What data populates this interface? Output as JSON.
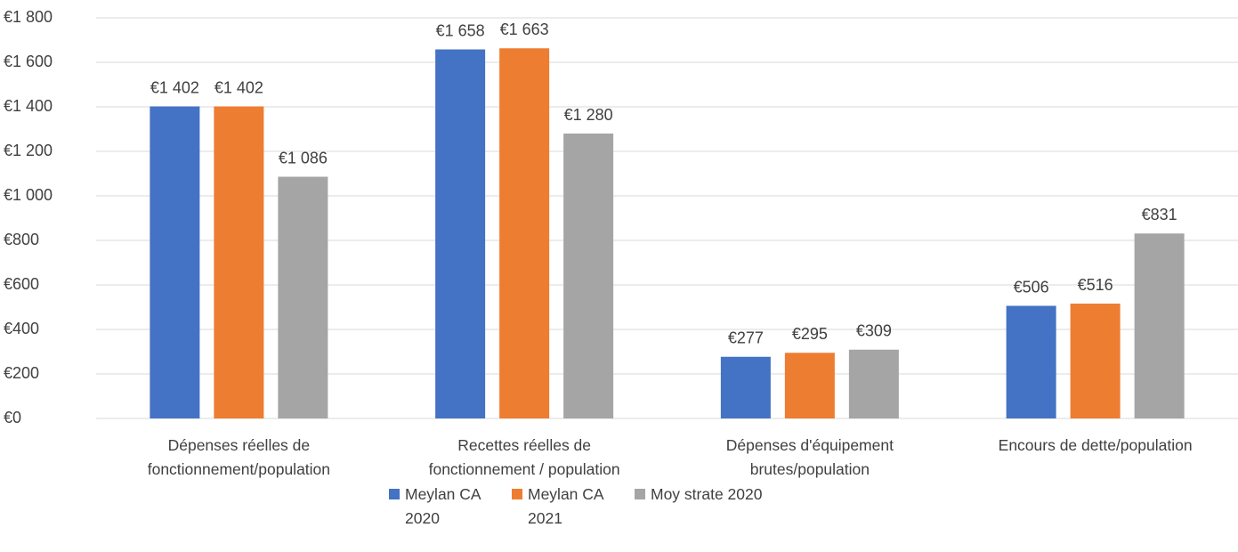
{
  "chart_data": {
    "type": "bar",
    "categories": [
      "Dépenses réelles de fonctionnement/population",
      "Recettes réelles de fonctionnement / population",
      "Dépenses d'équipement brutes/population",
      "Encours de dette/population"
    ],
    "series": [
      {
        "name": "Meylan CA 2020",
        "color": "#4472c4",
        "values": [
          1402,
          1658,
          277,
          506
        ],
        "value_labels": [
          "€1 402",
          "€1 658",
          "€277",
          "€506"
        ]
      },
      {
        "name": "Meylan CA 2021",
        "color": "#ed7d31",
        "values": [
          1402,
          1663,
          295,
          516
        ],
        "value_labels": [
          "€1 402",
          "€1 663",
          "€295",
          "€516"
        ]
      },
      {
        "name": "Moy strate 2020",
        "color": "#a5a5a5",
        "values": [
          1086,
          1280,
          309,
          831
        ],
        "value_labels": [
          "€1 086",
          "€1 280",
          "€309",
          "€831"
        ]
      }
    ],
    "ylim": [
      0,
      1800
    ],
    "yticks": [
      {
        "value": 0,
        "label": "€0"
      },
      {
        "value": 200,
        "label": "€200"
      },
      {
        "value": 400,
        "label": "€400"
      },
      {
        "value": 600,
        "label": "€600"
      },
      {
        "value": 800,
        "label": "€800"
      },
      {
        "value": 1000,
        "label": "€1 000"
      },
      {
        "value": 1200,
        "label": "€1 200"
      },
      {
        "value": 1400,
        "label": "€1 400"
      },
      {
        "value": 1600,
        "label": "€1 600"
      },
      {
        "value": 1800,
        "label": "€1 800"
      }
    ],
    "grid": true,
    "legend": "bottom"
  }
}
